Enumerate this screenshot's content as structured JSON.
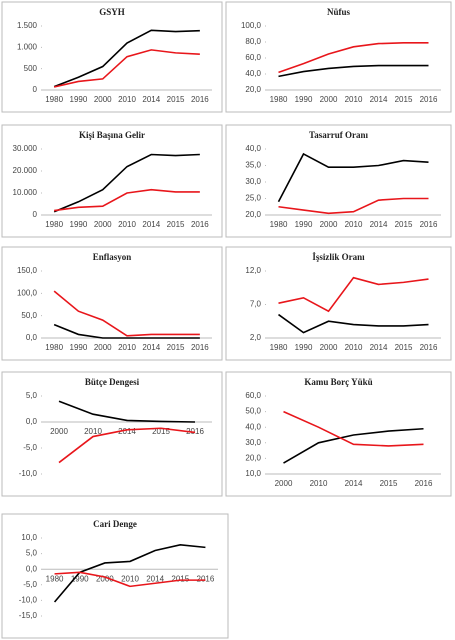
{
  "chart_data": [
    {
      "type": "line",
      "title": "GSYH",
      "categories": [
        "1980",
        "1990",
        "2000",
        "2010",
        "2014",
        "2015",
        "2016"
      ],
      "series": [
        {
          "color": "#000000",
          "values": [
            80,
            300,
            550,
            1100,
            1400,
            1370,
            1390
          ]
        },
        {
          "color": "#e8161b",
          "values": [
            70,
            200,
            260,
            780,
            940,
            870,
            840
          ]
        }
      ],
      "ylim": [
        0,
        1500
      ],
      "yticks": [
        0,
        500,
        {
          "value": 1000,
          "label": "1.000"
        },
        {
          "value": 1500,
          "label": "1.500"
        }
      ]
    },
    {
      "type": "line",
      "title": "Nüfus",
      "categories": [
        "1980",
        "1990",
        "2000",
        "2010",
        "2014",
        "2015",
        "2016"
      ],
      "series": [
        {
          "color": "#000000",
          "values": [
            37,
            43,
            47,
            49.5,
            50.5,
            50.5,
            50.5
          ]
        },
        {
          "color": "#e8161b",
          "values": [
            42,
            53,
            65,
            74,
            78,
            79,
            79
          ]
        }
      ],
      "ylim": [
        20,
        100
      ],
      "yticks": [
        {
          "value": 20,
          "label": "20,0"
        },
        {
          "value": 40,
          "label": "40,0"
        },
        {
          "value": 60,
          "label": "60,0"
        },
        {
          "value": 80,
          "label": "80,0"
        },
        {
          "value": 100,
          "label": "100,0"
        }
      ]
    },
    {
      "type": "line",
      "title": "Kişi Başına Gelir",
      "categories": [
        "1980",
        "1990",
        "2000",
        "2010",
        "2014",
        "2015",
        "2016"
      ],
      "series": [
        {
          "color": "#000000",
          "values": [
            1500,
            6000,
            11500,
            22000,
            27500,
            27000,
            27500
          ]
        },
        {
          "color": "#e8161b",
          "values": [
            2000,
            3500,
            4000,
            10000,
            11500,
            10500,
            10500
          ]
        }
      ],
      "ylim": [
        0,
        30000
      ],
      "yticks": [
        0,
        {
          "value": 10000,
          "label": "10.000"
        },
        {
          "value": 20000,
          "label": "20.000"
        },
        {
          "value": 30000,
          "label": "30.000"
        }
      ]
    },
    {
      "type": "line",
      "title": "Tasarruf Oranı",
      "categories": [
        "1980",
        "1990",
        "2000",
        "2010",
        "2014",
        "2015",
        "2016"
      ],
      "series": [
        {
          "color": "#000000",
          "values": [
            24,
            38.5,
            34.5,
            34.5,
            35,
            36.5,
            36
          ]
        },
        {
          "color": "#e8161b",
          "values": [
            22.5,
            21.5,
            20.5,
            21,
            24.5,
            25,
            25
          ]
        }
      ],
      "ylim": [
        20,
        40
      ],
      "yticks": [
        {
          "value": 20,
          "label": "20,0"
        },
        {
          "value": 25,
          "label": "25,0"
        },
        {
          "value": 30,
          "label": "30,0"
        },
        {
          "value": 35,
          "label": "35,0"
        },
        {
          "value": 40,
          "label": "40,0"
        }
      ]
    },
    {
      "type": "line",
      "title": "Enflasyon",
      "categories": [
        "1980",
        "1990",
        "2000",
        "2010",
        "2014",
        "2015",
        "2016"
      ],
      "series": [
        {
          "color": "#000000",
          "values": [
            30,
            8,
            0,
            0,
            0,
            0,
            0
          ]
        },
        {
          "color": "#e8161b",
          "values": [
            105,
            60,
            40,
            5,
            8,
            8,
            8
          ]
        }
      ],
      "ylim": [
        0,
        150
      ],
      "yticks": [
        {
          "value": 0,
          "label": "0,0"
        },
        {
          "value": 50,
          "label": "50,0"
        },
        {
          "value": 100,
          "label": "100,0"
        },
        {
          "value": 150,
          "label": "150,0"
        }
      ]
    },
    {
      "type": "line",
      "title": "İşsizlik Oranı",
      "categories": [
        "1980",
        "1990",
        "2000",
        "2010",
        "2014",
        "2015",
        "2016"
      ],
      "series": [
        {
          "color": "#000000",
          "values": [
            5.5,
            2.8,
            4.5,
            4,
            3.8,
            3.8,
            4
          ]
        },
        {
          "color": "#e8161b",
          "values": [
            7.2,
            8,
            6,
            11,
            10,
            10.3,
            10.8
          ]
        }
      ],
      "ylim": [
        2,
        12
      ],
      "yticks": [
        {
          "value": 2,
          "label": "2,0"
        },
        {
          "value": 7,
          "label": "7,0"
        },
        {
          "value": 12,
          "label": "12,0"
        }
      ]
    },
    {
      "type": "line",
      "title": "Bütçe Dengesi",
      "categories": [
        "2000",
        "2010",
        "2014",
        "2015",
        "2016"
      ],
      "series": [
        {
          "color": "#000000",
          "values": [
            4,
            1.5,
            0.3,
            0.1,
            0
          ]
        },
        {
          "color": "#e8161b",
          "values": [
            -7.8,
            -2.8,
            -1.5,
            -1.2,
            -2
          ]
        }
      ],
      "ylim": [
        -10,
        5
      ],
      "yticks": [
        {
          "value": -10,
          "label": "-10,0"
        },
        {
          "value": -5,
          "label": "-5,0"
        },
        {
          "value": 0,
          "label": "0,0"
        },
        {
          "value": 5,
          "label": "5,0"
        }
      ]
    },
    {
      "type": "line",
      "title": "Kamu Borç Yükü",
      "categories": [
        "2000",
        "2010",
        "2014",
        "2015",
        "2016"
      ],
      "series": [
        {
          "color": "#000000",
          "values": [
            17,
            30,
            35,
            37.5,
            39
          ]
        },
        {
          "color": "#e8161b",
          "values": [
            50,
            40,
            29,
            28,
            29
          ]
        }
      ],
      "ylim": [
        10,
        60
      ],
      "yticks": [
        {
          "value": 10,
          "label": "10,0"
        },
        {
          "value": 20,
          "label": "20,0"
        },
        {
          "value": 30,
          "label": "30,0"
        },
        {
          "value": 40,
          "label": "40,0"
        },
        {
          "value": 50,
          "label": "50,0"
        },
        {
          "value": 60,
          "label": "60,0"
        }
      ]
    },
    {
      "type": "line",
      "title": "Cari Denge",
      "categories": [
        "1980",
        "1990",
        "2000",
        "2010",
        "2014",
        "2015",
        "2016"
      ],
      "series": [
        {
          "color": "#000000",
          "values": [
            -10.5,
            -1,
            2,
            2.5,
            6,
            7.8,
            7
          ]
        },
        {
          "color": "#e8161b",
          "values": [
            -1.5,
            -1,
            -2.5,
            -5.5,
            -4.5,
            -3.5,
            -3.5
          ]
        }
      ],
      "ylim": [
        -15,
        10
      ],
      "yticks": [
        {
          "value": -15,
          "label": "-15,0"
        },
        {
          "value": -10,
          "label": "-10,0"
        },
        {
          "value": -5,
          "label": "-5,0"
        },
        {
          "value": 0,
          "label": "0,0"
        },
        {
          "value": 5,
          "label": "5,0"
        },
        {
          "value": 10,
          "label": "10,0"
        }
      ]
    }
  ]
}
